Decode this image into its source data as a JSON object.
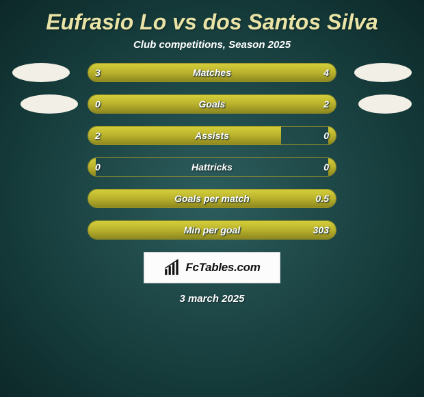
{
  "title_color": "#e9e4a6",
  "bar_border_color": "#9a9326",
  "bar_fill_gradient": [
    "#d4cd3a",
    "#b9b22c",
    "#8e8720"
  ],
  "logo_bg": "#f2f0e6",
  "title": "Eufrasio Lo vs dos Santos Silva",
  "subtitle": "Club competitions, Season 2025",
  "date": "3 march 2025",
  "brand": "FcTables.com",
  "rows": [
    {
      "label": "Matches",
      "left": "3",
      "right": "4",
      "left_w": 42,
      "right_w": 58,
      "show_logos": true
    },
    {
      "label": "Goals",
      "left": "0",
      "right": "2",
      "left_w": 18,
      "right_w": 82,
      "show_logos": true
    },
    {
      "label": "Assists",
      "left": "2",
      "right": "0",
      "left_w": 78,
      "right_w": 3,
      "show_logos": false
    },
    {
      "label": "Hattricks",
      "left": "0",
      "right": "0",
      "left_w": 3,
      "right_w": 3,
      "show_logos": false
    },
    {
      "label": "Goals per match",
      "left": "",
      "right": "0.5",
      "left_w": 3,
      "right_w": 97,
      "show_logos": false
    },
    {
      "label": "Min per goal",
      "left": "",
      "right": "303",
      "left_w": 3,
      "right_w": 97,
      "show_logos": false
    }
  ]
}
